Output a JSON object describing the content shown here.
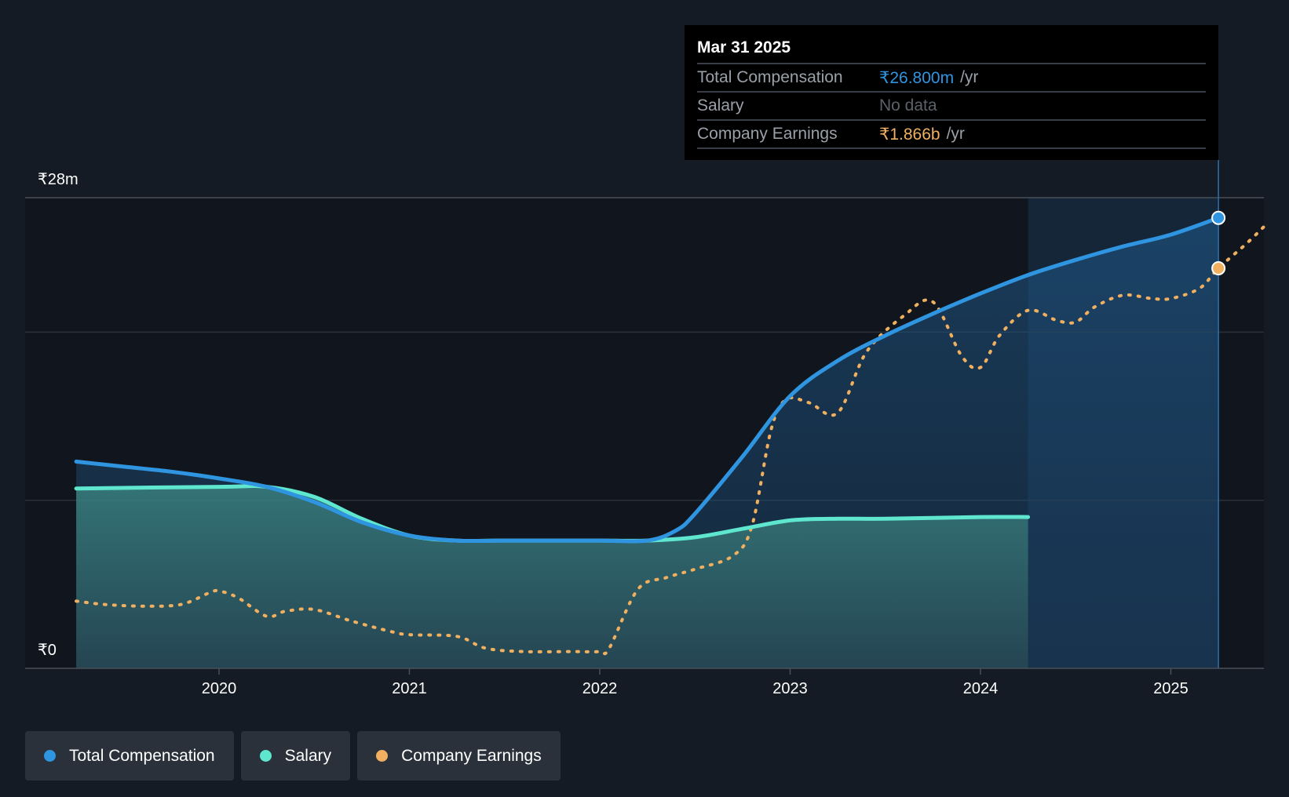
{
  "chart_data": {
    "type": "area",
    "y_ticks": [
      {
        "label": "₹28m",
        "value": 28
      },
      {
        "label": "₹0",
        "value": 0
      }
    ],
    "ylim": [
      0,
      28
    ],
    "y_gridlines": [
      10,
      20,
      28
    ],
    "x_ticks": [
      "2020",
      "2021",
      "2022",
      "2023",
      "2024",
      "2025"
    ],
    "xlim": [
      2019.15,
      2025.5
    ],
    "legend_position": "bottom-left",
    "series": [
      {
        "name": "Total Compensation",
        "color": "#2f95e0",
        "x": [
          2019.25,
          2019.5,
          2019.75,
          2020.0,
          2020.25,
          2020.5,
          2020.75,
          2021.0,
          2021.25,
          2021.5,
          2021.75,
          2022.0,
          2022.25,
          2022.4,
          2022.5,
          2022.75,
          2023.0,
          2023.25,
          2023.5,
          2023.75,
          2024.0,
          2024.25,
          2024.5,
          2024.75,
          2025.0,
          2025.25
        ],
        "values": [
          12.3,
          12.0,
          11.7,
          11.3,
          10.8,
          9.9,
          8.7,
          7.9,
          7.6,
          7.6,
          7.6,
          7.6,
          7.6,
          8.2,
          9.2,
          12.6,
          16.2,
          18.3,
          19.8,
          21.1,
          22.3,
          23.4,
          24.3,
          25.1,
          25.8,
          26.8
        ]
      },
      {
        "name": "Salary",
        "color": "#5ee6cf",
        "x": [
          2019.25,
          2020.0,
          2020.25,
          2020.5,
          2020.75,
          2021.0,
          2021.25,
          2021.5,
          2022.0,
          2022.25,
          2022.5,
          2022.75,
          2023.0,
          2023.25,
          2023.5,
          2024.0,
          2024.25
        ],
        "values": [
          10.7,
          10.8,
          10.8,
          10.2,
          8.9,
          7.9,
          7.6,
          7.6,
          7.6,
          7.6,
          7.8,
          8.3,
          8.8,
          8.9,
          8.9,
          9.0,
          9.0
        ]
      },
      {
        "name": "Company Earnings",
        "color": "#f0b060",
        "x": [
          2019.25,
          2019.4,
          2019.6,
          2019.8,
          2019.95,
          2020.0,
          2020.1,
          2020.25,
          2020.35,
          2020.5,
          2020.7,
          2020.9,
          2021.0,
          2021.25,
          2021.4,
          2021.6,
          2021.85,
          2022.0,
          2022.05,
          2022.2,
          2022.35,
          2022.5,
          2022.7,
          2022.8,
          2022.9,
          2022.98,
          2023.1,
          2023.25,
          2023.4,
          2023.6,
          2023.75,
          2023.9,
          2024.0,
          2024.1,
          2024.25,
          2024.4,
          2024.5,
          2024.6,
          2024.75,
          2024.9,
          2025.0,
          2025.15,
          2025.25,
          2025.4,
          2025.5
        ],
        "values": [
          4.0,
          3.8,
          3.7,
          3.8,
          4.5,
          4.6,
          4.2,
          3.1,
          3.4,
          3.5,
          2.8,
          2.2,
          2.0,
          1.9,
          1.2,
          1.0,
          1.0,
          1.0,
          1.2,
          4.7,
          5.4,
          5.9,
          6.7,
          8.5,
          14.2,
          16.0,
          15.8,
          15.2,
          18.8,
          21.0,
          21.8,
          18.6,
          17.9,
          19.8,
          21.3,
          20.7,
          20.6,
          21.5,
          22.2,
          22.0,
          22.0,
          22.6,
          23.8,
          25.3,
          26.4
        ]
      }
    ],
    "tooltip": {
      "date": "Mar 31 2025",
      "x": 2025.25,
      "rows": [
        {
          "label": "Total Compensation",
          "value": "₹26.800m",
          "unit": "/yr"
        },
        {
          "label": "Salary",
          "value": "No data",
          "unit": ""
        },
        {
          "label": "Company Earnings",
          "value": "₹1.866b",
          "unit": "/yr"
        }
      ]
    },
    "highlight_range": [
      2024.25,
      2025.25
    ]
  },
  "legend": [
    {
      "label": "Total Compensation",
      "color": "#2f95e0"
    },
    {
      "label": "Salary",
      "color": "#5ee6cf"
    },
    {
      "label": "Company Earnings",
      "color": "#f0b060"
    }
  ]
}
